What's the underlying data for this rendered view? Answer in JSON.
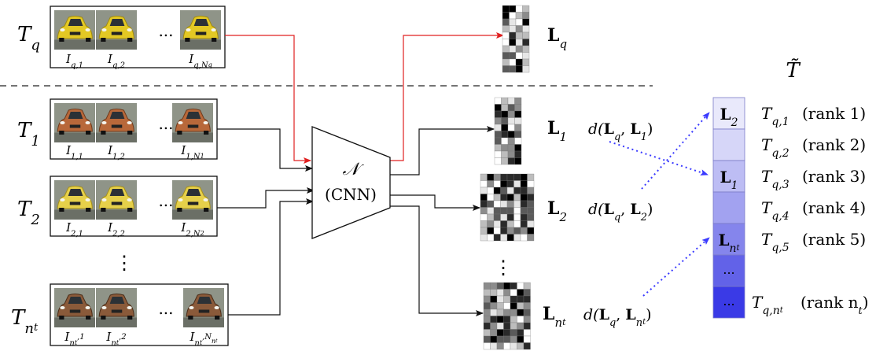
{
  "tracks": [
    {
      "id": "q",
      "label_main": "T",
      "label_sub": "q",
      "images": [
        {
          "main": "I",
          "sub": "q,1"
        },
        {
          "main": "I",
          "sub": "q,2"
        },
        {
          "main": "I",
          "sub": "q,N",
          "subsub": "q"
        }
      ],
      "car_color": "#e3c824",
      "car_shadow": "#a08a10"
    },
    {
      "id": "1",
      "label_main": "T",
      "label_sub": "1",
      "images": [
        {
          "main": "I",
          "sub": "1,1"
        },
        {
          "main": "I",
          "sub": "1,2"
        },
        {
          "main": "I",
          "sub": "1,N",
          "subsub": "1"
        }
      ],
      "car_color": "#b8683a",
      "car_shadow": "#6e3a1c"
    },
    {
      "id": "2",
      "label_main": "T",
      "label_sub": "2",
      "images": [
        {
          "main": "I",
          "sub": "2,1"
        },
        {
          "main": "I",
          "sub": "2,2"
        },
        {
          "main": "I",
          "sub": "2,N",
          "subsub": "2"
        }
      ],
      "car_color": "#e6d04a",
      "car_shadow": "#a6901a"
    },
    {
      "id": "nt",
      "label_main": "T",
      "label_sub": "n",
      "label_subsub": "t",
      "images": [
        {
          "main": "I",
          "sub": "n",
          "subsub": "t",
          "tail": ",1"
        },
        {
          "main": "I",
          "sub": "n",
          "subsub": "t",
          "tail": ",2"
        },
        {
          "main": "I",
          "sub": "n",
          "subsub": "t",
          "tail": ",N",
          "tail_sub": "n",
          "tail_subsub": "t"
        }
      ],
      "car_color": "#8a5a3a",
      "car_shadow": "#4a2c18"
    }
  ],
  "ellipsis": "...",
  "vdots": "⋮",
  "cnn": {
    "symbol": "𝒩",
    "label": "(CNN)"
  },
  "features": [
    {
      "main": "L",
      "sub": "q"
    },
    {
      "main": "L",
      "sub": "1"
    },
    {
      "main": "L",
      "sub": "2"
    },
    {
      "main": "L",
      "sub": "n",
      "subsub": "t"
    }
  ],
  "distances": [
    {
      "prefix": "d(",
      "a_main": "L",
      "a_sub": "q",
      "sep": ", ",
      "b_main": "L",
      "b_sub": "1",
      "suffix": ")"
    },
    {
      "prefix": "d(",
      "a_main": "L",
      "a_sub": "q",
      "sep": ", ",
      "b_main": "L",
      "b_sub": "2",
      "suffix": ")"
    },
    {
      "prefix": "d(",
      "a_main": "L",
      "a_sub": "q",
      "sep": ", ",
      "b_main": "L",
      "b_sub": "n",
      "b_subsub": "t",
      "suffix": ")"
    }
  ],
  "ranked_title": "T̃",
  "ranking": [
    {
      "cell_main": "L",
      "cell_sub": "2",
      "label_main": "T",
      "label_sub": "q,1",
      "rank": "(rank 1)",
      "fill": "#e9e9fb"
    },
    {
      "cell_main": "",
      "cell_sub": "",
      "label_main": "T",
      "label_sub": "q,2",
      "rank": "(rank 2)",
      "fill": "#d6d6f8"
    },
    {
      "cell_main": "L",
      "cell_sub": "1",
      "label_main": "T",
      "label_sub": "q,3",
      "rank": "(rank 3)",
      "fill": "#bdbdf4"
    },
    {
      "cell_main": "",
      "cell_sub": "",
      "label_main": "T",
      "label_sub": "q,4",
      "rank": "(rank 4)",
      "fill": "#a2a2f0"
    },
    {
      "cell_main": "L",
      "cell_sub": "n",
      "cell_subsub": "t",
      "label_main": "T",
      "label_sub": "q,5",
      "rank": "(rank 5)",
      "fill": "#8585ec"
    },
    {
      "cell_main": "...",
      "cell_sub": "",
      "label_main": "",
      "label_sub": "",
      "rank": "",
      "fill": "#6262e8"
    },
    {
      "cell_main": "...",
      "cell_sub": "",
      "label_main": "T",
      "label_sub": "q,n",
      "label_subsub": "t",
      "rank": "(rank n",
      "rank_sub": "t",
      "rank_tail": ")",
      "fill": "#3a3ae6"
    }
  ],
  "colors": {
    "query_arrow": "#e02020",
    "arrow": "#111111",
    "assign_arrow": "#3a3aff",
    "frame": "#111111"
  }
}
